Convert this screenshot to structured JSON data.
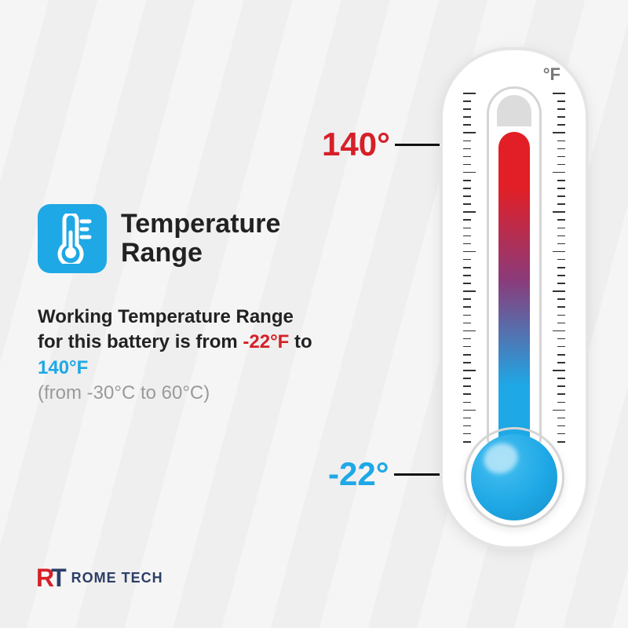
{
  "title": "Temperature\nRange",
  "description_pre": "Working Temperature Range for this battery is from ",
  "description_low": "-22°F",
  "description_mid": " to ",
  "description_high": "140°F",
  "description_sub": "(from -30°C to 60°C)",
  "thermometer": {
    "unit_label": "°F",
    "high_label": "140°",
    "low_label": "-22°",
    "fluid_top_pct": 11,
    "gradient_top_color": "#e21f26",
    "gradient_mid_color": "#8a3b7a",
    "gradient_bottom_color": "#1ea8e6",
    "bulb_color": "#1ea8e6",
    "bulb_color_light": "#49c0f0",
    "high_color": "#d62028",
    "low_color": "#1ea8e6",
    "tick_count": 44,
    "major_every": 5,
    "minor_len": 10,
    "major_len": 16
  },
  "icon": {
    "bg": "#1ea8e6",
    "fg": "#ffffff"
  },
  "logo": {
    "mark_r": "R",
    "mark_t": "T",
    "text": "ROME TECH",
    "r_color": "#d62028",
    "t_color": "#2c3e66",
    "text_color": "#2c3e66"
  },
  "colors": {
    "bg_light": "#f5f5f5",
    "bg_stripe": "#efefef",
    "text": "#222222",
    "subtext": "#9a9a9a"
  }
}
